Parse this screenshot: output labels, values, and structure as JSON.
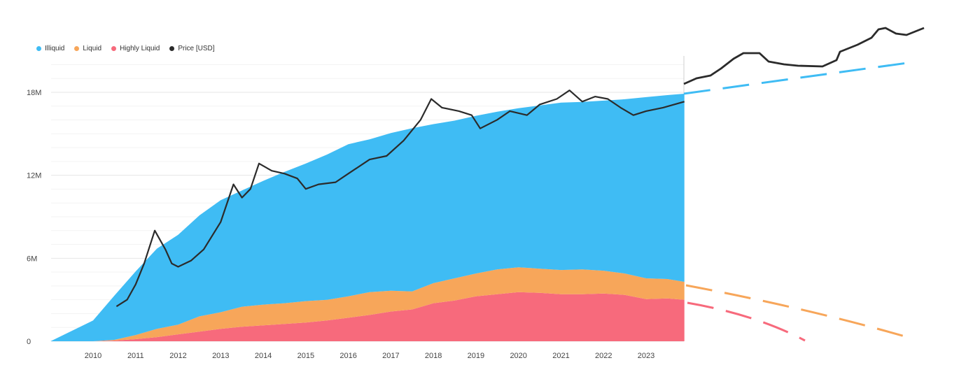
{
  "legend": [
    {
      "label": "Illiquid",
      "color": "#3fbcf4"
    },
    {
      "label": "Liquid",
      "color": "#f7a65a"
    },
    {
      "label": "Highly Liquid",
      "color": "#f76a7c"
    },
    {
      "label": "Price [USD]",
      "color": "#2b2b2b"
    }
  ],
  "chart_data": {
    "type": "area",
    "stacked": true,
    "x_unit": "year",
    "xlim": [
      2009.0,
      2023.9
    ],
    "ylim": [
      0,
      20000000
    ],
    "y_ticks": [
      {
        "value": 0,
        "label": "0"
      },
      {
        "value": 6000000,
        "label": "6M"
      },
      {
        "value": 12000000,
        "label": "12M"
      },
      {
        "value": 18000000,
        "label": "18M"
      }
    ],
    "x_ticks": [
      "2010",
      "2011",
      "2012",
      "2013",
      "2014",
      "2015",
      "2016",
      "2017",
      "2018",
      "2019",
      "2020",
      "2021",
      "2022",
      "2023"
    ],
    "grid": true,
    "legend_position": "top-left",
    "series": [
      {
        "name": "Highly Liquid",
        "color": "#f76a7c",
        "x": [
          2009.0,
          2010.0,
          2010.5,
          2011.0,
          2011.5,
          2012.0,
          2012.5,
          2013.0,
          2013.5,
          2014.0,
          2014.5,
          2015.0,
          2015.5,
          2016.0,
          2016.5,
          2017.0,
          2017.5,
          2018.0,
          2018.5,
          2019.0,
          2019.5,
          2020.0,
          2020.5,
          2021.0,
          2021.5,
          2022.0,
          2022.5,
          2023.0,
          2023.5,
          2023.9
        ],
        "values": [
          0,
          0,
          50000,
          150000,
          300000,
          500000,
          700000,
          900000,
          1050000,
          1150000,
          1250000,
          1350000,
          1500000,
          1700000,
          1900000,
          2150000,
          2300000,
          2750000,
          2950000,
          3250000,
          3400000,
          3550000,
          3500000,
          3400000,
          3400000,
          3450000,
          3350000,
          3050000,
          3100000,
          3000000
        ]
      },
      {
        "name": "Liquid",
        "color": "#f7a65a",
        "x": [
          2009.0,
          2010.0,
          2010.5,
          2011.0,
          2011.5,
          2012.0,
          2012.5,
          2013.0,
          2013.5,
          2014.0,
          2014.5,
          2015.0,
          2015.5,
          2016.0,
          2016.5,
          2017.0,
          2017.5,
          2018.0,
          2018.5,
          2019.0,
          2019.5,
          2020.0,
          2020.5,
          2021.0,
          2021.5,
          2022.0,
          2022.5,
          2023.0,
          2023.5,
          2023.9
        ],
        "values": [
          0,
          0,
          50000,
          300000,
          600000,
          700000,
          1100000,
          1200000,
          1450000,
          1500000,
          1500000,
          1550000,
          1500000,
          1550000,
          1650000,
          1500000,
          1300000,
          1450000,
          1600000,
          1650000,
          1800000,
          1800000,
          1750000,
          1750000,
          1800000,
          1650000,
          1550000,
          1500000,
          1400000,
          1300000
        ]
      },
      {
        "name": "Illiquid",
        "color": "#3fbcf4",
        "x": [
          2009.0,
          2010.0,
          2010.5,
          2011.0,
          2011.5,
          2012.0,
          2012.5,
          2013.0,
          2013.5,
          2014.0,
          2014.5,
          2015.0,
          2015.5,
          2016.0,
          2016.5,
          2017.0,
          2017.5,
          2018.0,
          2018.5,
          2019.0,
          2019.5,
          2020.0,
          2020.5,
          2021.0,
          2021.5,
          2022.0,
          2022.5,
          2023.0,
          2023.5,
          2023.9
        ],
        "values": [
          0,
          1500000,
          3200000,
          4600000,
          5800000,
          6500000,
          7300000,
          8100000,
          8400000,
          8950000,
          9500000,
          9950000,
          10500000,
          11000000,
          11050000,
          11400000,
          11800000,
          11500000,
          11400000,
          11400000,
          11400000,
          11500000,
          11800000,
          12100000,
          12100000,
          12300000,
          12600000,
          13100000,
          13300000,
          13600000
        ]
      }
    ],
    "price": {
      "name": "Price [USD]",
      "color": "#2b2b2b",
      "scale": "log",
      "x": [
        2010.55,
        2010.8,
        2011.0,
        2011.2,
        2011.45,
        2011.7,
        2011.85,
        2012.0,
        2012.3,
        2012.6,
        2013.0,
        2013.3,
        2013.5,
        2013.7,
        2013.9,
        2014.2,
        2014.5,
        2014.8,
        2015.0,
        2015.3,
        2015.7,
        2016.0,
        2016.5,
        2016.9,
        2017.3,
        2017.7,
        2017.95,
        2018.2,
        2018.6,
        2018.9,
        2019.1,
        2019.5,
        2019.8,
        2020.2,
        2020.5,
        2020.9,
        2021.2,
        2021.5,
        2021.8,
        2022.1,
        2022.4,
        2022.7,
        2023.0,
        2023.4,
        2023.9
      ],
      "values": [
        1.2,
        1.5,
        2.5,
        5,
        15,
        8,
        5,
        4.5,
        5.5,
        8,
        20,
        70,
        45,
        60,
        140,
        110,
        100,
        85,
        60,
        70,
        75,
        100,
        160,
        180,
        300,
        600,
        1200,
        900,
        800,
        700,
        450,
        600,
        800,
        700,
        1000,
        1200,
        1600,
        1100,
        1300,
        1200,
        900,
        700,
        800,
        900,
        1100
      ]
    }
  }
}
